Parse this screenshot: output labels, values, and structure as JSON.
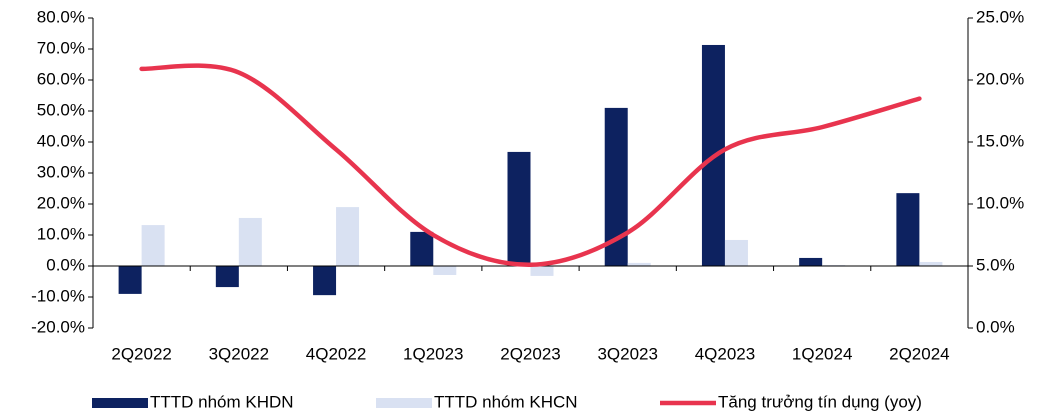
{
  "chart_data": {
    "type": "bar-line",
    "categories": [
      "2Q2022",
      "3Q2022",
      "4Q2022",
      "1Q2023",
      "2Q2023",
      "3Q2023",
      "4Q2023",
      "1Q2024",
      "2Q2024"
    ],
    "series": [
      {
        "name": "TTTD nhóm KHDN",
        "type": "bar",
        "color": "#0d2260",
        "values": [
          -9.0,
          -6.8,
          -9.4,
          11.0,
          36.8,
          51.0,
          71.3,
          2.6,
          23.5
        ]
      },
      {
        "name": "TTTD nhóm KHCN",
        "type": "bar",
        "color": "#d9e1f2",
        "values": [
          13.2,
          15.5,
          19.0,
          -2.9,
          -3.2,
          1.0,
          8.4,
          0.3,
          1.3
        ]
      },
      {
        "name": "Tăng trưởng tín dụng (yoy)",
        "type": "line",
        "axis": "y2",
        "color": "#e8344e",
        "values": [
          20.9,
          20.6,
          14.4,
          7.5,
          5.1,
          7.7,
          14.4,
          16.2,
          18.5
        ]
      }
    ],
    "ylim": [
      -20,
      80
    ],
    "yticks": [
      {
        "value": -20,
        "label": "-20.0%"
      },
      {
        "value": -10,
        "label": "-10.0%"
      },
      {
        "value": 0,
        "label": "0.0%"
      },
      {
        "value": 10,
        "label": "10.0%"
      },
      {
        "value": 20,
        "label": "20.0%"
      },
      {
        "value": 30,
        "label": "30.0%"
      },
      {
        "value": 40,
        "label": "40.0%"
      },
      {
        "value": 50,
        "label": "50.0%"
      },
      {
        "value": 60,
        "label": "60.0%"
      },
      {
        "value": 70,
        "label": "70.0%"
      },
      {
        "value": 80,
        "label": "80.0%"
      }
    ],
    "y2lim": [
      0,
      25
    ],
    "y2ticks": [
      {
        "value": 0,
        "label": "0.0%"
      },
      {
        "value": 5,
        "label": "5.0%"
      },
      {
        "value": 10,
        "label": "10.0%"
      },
      {
        "value": 15,
        "label": "15.0%"
      },
      {
        "value": 20,
        "label": "20.0%"
      },
      {
        "value": 25,
        "label": "25.0%"
      }
    ],
    "legend": "bottom"
  }
}
